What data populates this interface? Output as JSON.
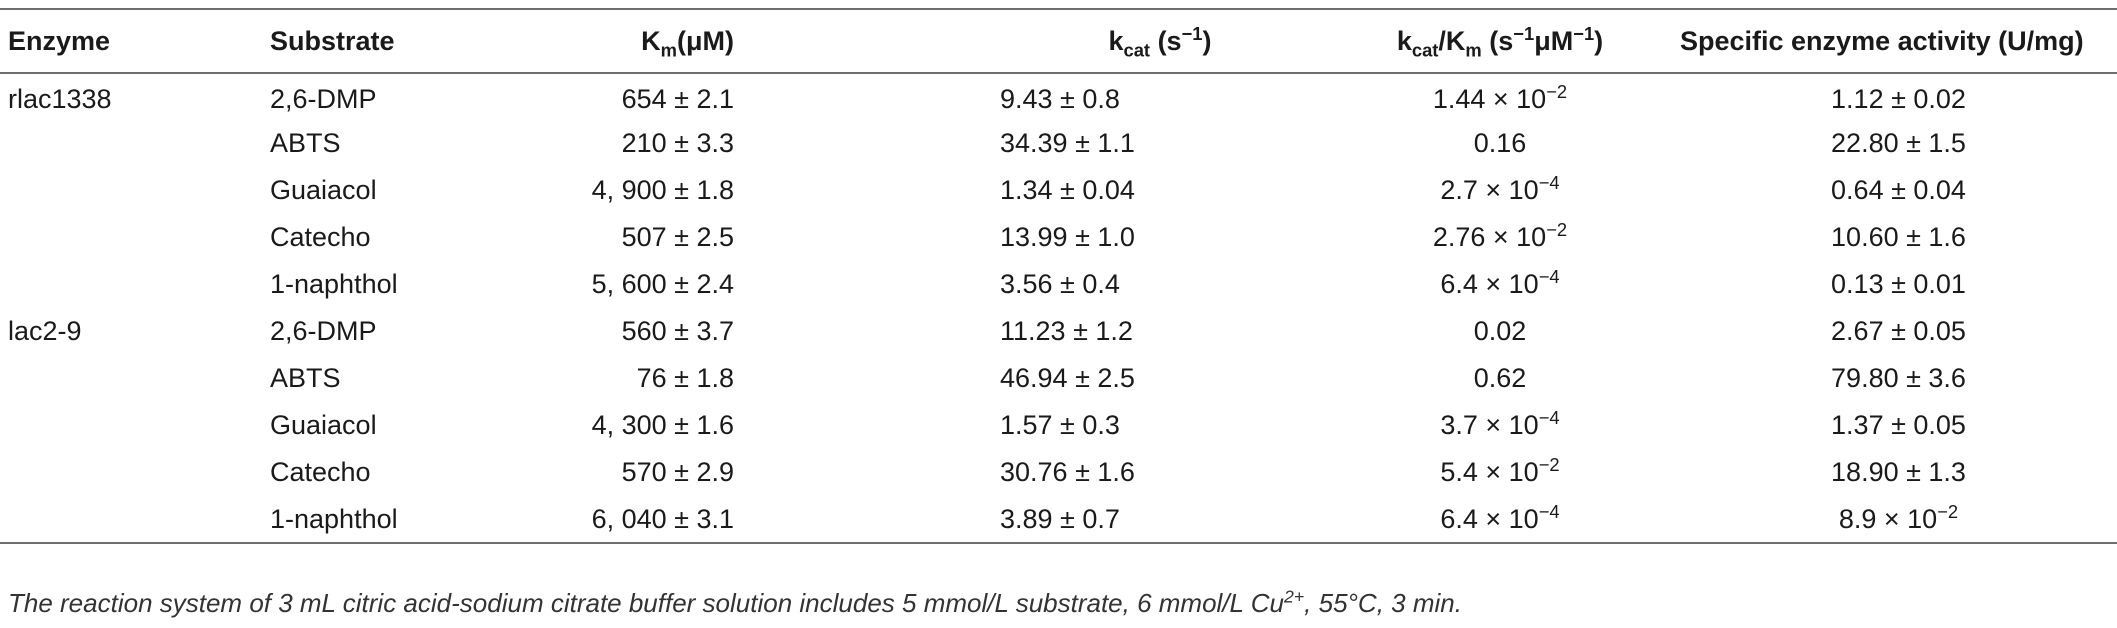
{
  "table": {
    "header": {
      "enzyme": "Enzyme",
      "substrate": "Substrate",
      "km_main": "K",
      "km_sub": "m",
      "km_unit": "(μM)",
      "kcat_main": "k",
      "kcat_sub": "cat",
      "kcat_unit_open": " (s",
      "kcat_unit_sup": "−1",
      "kcat_unit_close": ")",
      "ratio_k": "k",
      "ratio_cat": "cat",
      "ratio_slash_k": "/K",
      "ratio_m": "m",
      "ratio_unit_open": " (s",
      "ratio_unit_sup1": "−1",
      "ratio_unit_mid": "μM",
      "ratio_unit_sup2": "−1",
      "ratio_unit_close": ")",
      "activity": "Specific enzyme activity (U/mg)"
    },
    "rows": [
      {
        "enzyme": "rlac1338",
        "substrate": "2,6-DMP",
        "km": "654 ± 2.1",
        "kcat": "9.43 ± 0.8",
        "ratio": "1.44 × 10",
        "ratio_exp": "−2",
        "activity": "1.12 ± 0.02",
        "activity_exp": ""
      },
      {
        "enzyme": "",
        "substrate": "ABTS",
        "km": "210 ± 3.3",
        "kcat": "34.39 ± 1.1",
        "ratio": "0.16",
        "ratio_exp": "",
        "activity": "22.80 ± 1.5",
        "activity_exp": ""
      },
      {
        "enzyme": "",
        "substrate": "Guaiacol",
        "km": "4, 900 ± 1.8",
        "kcat": "1.34 ± 0.04",
        "ratio": "2.7 × 10",
        "ratio_exp": "−4",
        "activity": "0.64 ± 0.04",
        "activity_exp": ""
      },
      {
        "enzyme": "",
        "substrate": "Catecho",
        "km": "507 ± 2.5",
        "kcat": "13.99 ± 1.0",
        "ratio": "2.76 × 10",
        "ratio_exp": "−2",
        "activity": "10.60 ± 1.6",
        "activity_exp": ""
      },
      {
        "enzyme": "",
        "substrate": "1-naphthol",
        "km": "5, 600 ± 2.4",
        "kcat": "3.56 ± 0.4",
        "ratio": "6.4 × 10",
        "ratio_exp": "−4",
        "activity": "0.13 ± 0.01",
        "activity_exp": ""
      },
      {
        "enzyme": "lac2-9",
        "substrate": "2,6-DMP",
        "km": "560 ± 3.7",
        "kcat": "11.23 ± 1.2",
        "ratio": "0.02",
        "ratio_exp": "",
        "activity": "2.67 ± 0.05",
        "activity_exp": ""
      },
      {
        "enzyme": "",
        "substrate": "ABTS",
        "km": "76 ± 1.8",
        "kcat": "46.94 ± 2.5",
        "ratio": "0.62",
        "ratio_exp": "",
        "activity": "79.80 ± 3.6",
        "activity_exp": ""
      },
      {
        "enzyme": "",
        "substrate": "Guaiacol",
        "km": "4, 300 ± 1.6",
        "kcat": "1.57 ± 0.3",
        "ratio": "3.7 × 10",
        "ratio_exp": "−4",
        "activity": "1.37 ± 0.05",
        "activity_exp": ""
      },
      {
        "enzyme": "",
        "substrate": "Catecho",
        "km": "570 ± 2.9",
        "kcat": "30.76 ± 1.6",
        "ratio": "5.4 × 10",
        "ratio_exp": "−2",
        "activity": "18.90 ± 1.3",
        "activity_exp": ""
      },
      {
        "enzyme": "",
        "substrate": "1-naphthol",
        "km": "6, 040 ± 3.1",
        "kcat": "3.89 ± 0.7",
        "ratio": "6.4 × 10",
        "ratio_exp": "−4",
        "activity": "8.9 × 10",
        "activity_exp": "−2"
      }
    ]
  },
  "footnote": {
    "text_before": "The reaction system of 3 mL citric acid-sodium citrate buffer solution includes 5 mmol/L substrate, 6 mmol/L Cu",
    "sup": "2+",
    "text_after": ", 55°C, 3 min."
  }
}
